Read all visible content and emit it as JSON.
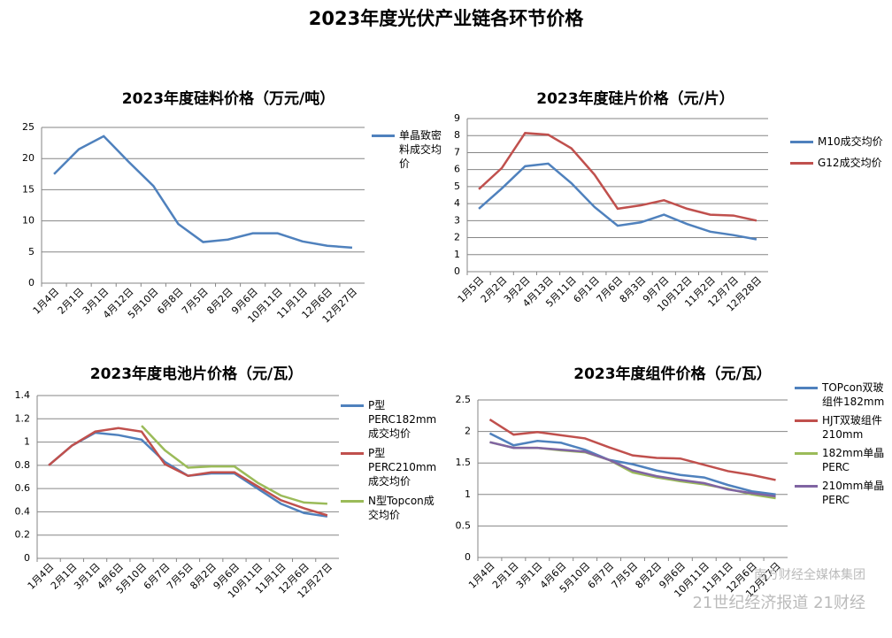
{
  "title": "2023年度光伏产业链各环节价格",
  "watermark": [
    "南方财经全媒体集团",
    "21世纪经济报道",
    "21财经"
  ],
  "chart_data": [
    {
      "type": "line",
      "title": "2023年度硅料价格（万元/吨）",
      "categories": [
        "1月4日",
        "2月1日",
        "3月1日",
        "4月12日",
        "5月10日",
        "6月8日",
        "7月5日",
        "8月2日",
        "9月6日",
        "10月11日",
        "11月1日",
        "12月6日",
        "12月27日"
      ],
      "series": [
        {
          "name": "单晶致密料成交均价",
          "color": "#4f81bd",
          "values": [
            17.5,
            21.5,
            23.6,
            19.5,
            15.6,
            9.5,
            6.6,
            7.0,
            8.0,
            8.0,
            6.7,
            6.0,
            5.7
          ]
        }
      ],
      "ylim": [
        0,
        25
      ],
      "yticks": [
        0,
        5,
        10,
        15,
        20,
        25
      ],
      "grid": true
    },
    {
      "type": "line",
      "title": "2023年度硅片价格（元/片）",
      "categories": [
        "1月5日",
        "2月2日",
        "3月2日",
        "4月13日",
        "5月11日",
        "6月1日",
        "7月6日",
        "8月3日",
        "9月7日",
        "10月12日",
        "11月2日",
        "12月7日",
        "12月28日"
      ],
      "series": [
        {
          "name": "M10成交均价",
          "color": "#4f81bd",
          "values": [
            3.7,
            4.9,
            6.2,
            6.35,
            5.2,
            3.8,
            2.7,
            2.9,
            3.35,
            2.8,
            2.35,
            2.15,
            1.9
          ]
        },
        {
          "name": "G12成交均价",
          "color": "#c0504d",
          "values": [
            4.85,
            6.1,
            8.15,
            8.05,
            7.25,
            5.7,
            3.7,
            3.9,
            4.2,
            3.7,
            3.35,
            3.3,
            3.0
          ]
        }
      ],
      "ylim": [
        0,
        9
      ],
      "yticks": [
        0,
        1,
        2,
        3,
        4,
        5,
        6,
        7,
        8,
        9
      ],
      "grid": true
    },
    {
      "type": "line",
      "title": "2023年度电池片价格（元/瓦）",
      "categories": [
        "1月4日",
        "2月1日",
        "3月1日",
        "4月6日",
        "5月10日",
        "6月7日",
        "7月5日",
        "8月2日",
        "9月6日",
        "10月11日",
        "11月1日",
        "12月6日",
        "12月27日"
      ],
      "series": [
        {
          "name": "P型PERC182mm成交均价",
          "color": "#4f81bd",
          "values": [
            0.8,
            0.97,
            1.08,
            1.06,
            1.02,
            0.83,
            0.71,
            0.73,
            0.73,
            0.6,
            0.47,
            0.39,
            0.36
          ]
        },
        {
          "name": "P型PERC210mm成交均价",
          "color": "#c0504d",
          "values": [
            0.8,
            0.97,
            1.09,
            1.12,
            1.09,
            0.81,
            0.71,
            0.74,
            0.74,
            0.62,
            0.5,
            0.43,
            0.37
          ]
        },
        {
          "name": "N型Topcon成交均价",
          "color": "#9bbb59",
          "values": [
            null,
            null,
            null,
            null,
            1.14,
            0.93,
            0.78,
            0.79,
            0.79,
            0.65,
            0.54,
            0.48,
            0.47
          ]
        }
      ],
      "ylim": [
        0,
        1.4
      ],
      "yticks": [
        0,
        0.2,
        0.4,
        0.6,
        0.8,
        1,
        1.2,
        1.4
      ],
      "grid": true
    },
    {
      "type": "line",
      "title": "2023年度组件价格（元/瓦）",
      "categories": [
        "1月4日",
        "2月1日",
        "3月1日",
        "4月6日",
        "5月10日",
        "6月7日",
        "7月5日",
        "8月2日",
        "9月6日",
        "10月11日",
        "11月1日",
        "12月6日",
        "12月27日"
      ],
      "series": [
        {
          "name": "TOPcon双玻组件182mm",
          "color": "#4f81bd",
          "values": [
            1.97,
            1.78,
            1.85,
            1.82,
            1.71,
            1.55,
            1.48,
            1.38,
            1.31,
            1.27,
            1.15,
            1.05,
            1.0
          ]
        },
        {
          "name": "HJT双玻组件210mm",
          "color": "#c0504d",
          "values": [
            2.19,
            1.95,
            1.99,
            1.94,
            1.89,
            1.75,
            1.62,
            1.58,
            1.57,
            1.47,
            1.37,
            1.31,
            1.23
          ]
        },
        {
          "name": "182mm单晶PERC",
          "color": "#9bbb59",
          "values": [
            1.83,
            1.74,
            1.74,
            1.7,
            1.67,
            1.55,
            1.35,
            1.27,
            1.21,
            1.16,
            1.09,
            1.0,
            0.94
          ]
        },
        {
          "name": "210mm单晶PERC",
          "color": "#8064a2",
          "values": [
            1.83,
            1.74,
            1.74,
            1.71,
            1.68,
            1.55,
            1.38,
            1.29,
            1.23,
            1.18,
            1.08,
            1.02,
            0.97
          ]
        }
      ],
      "ylim": [
        0,
        2.5
      ],
      "yticks": [
        0,
        0.5,
        1,
        1.5,
        2,
        2.5
      ],
      "grid": true
    }
  ]
}
